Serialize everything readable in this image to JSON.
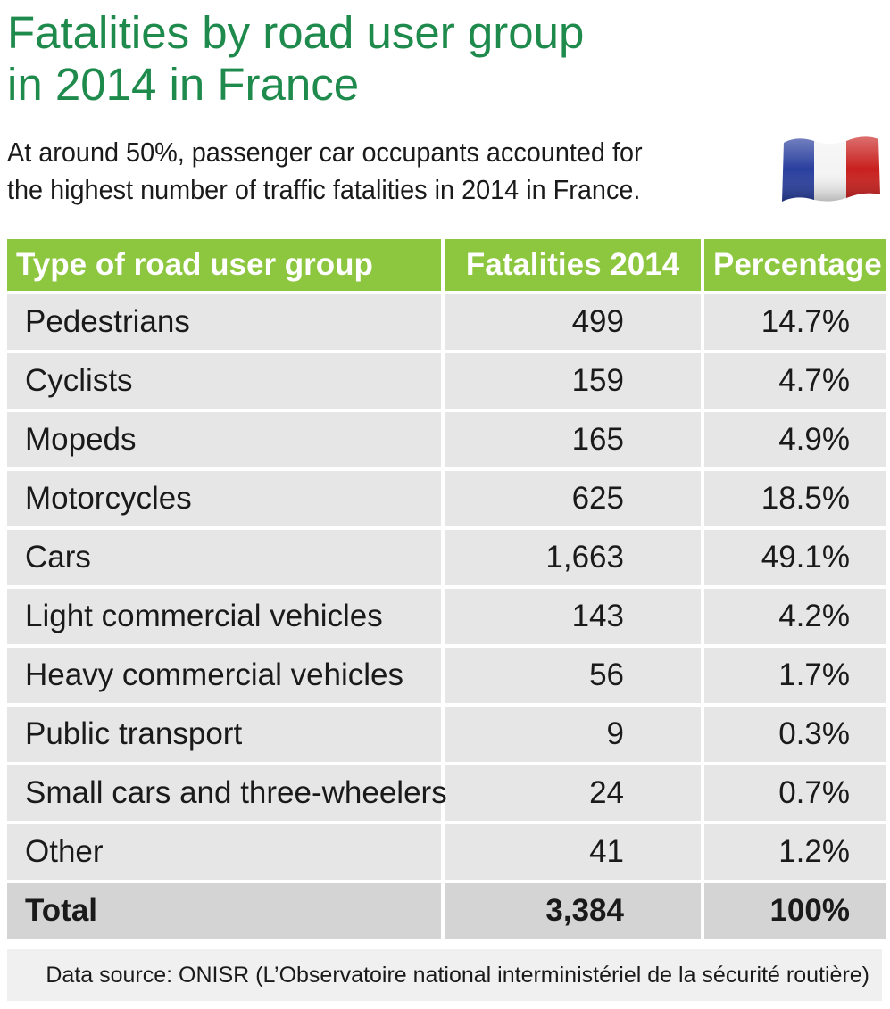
{
  "title_line1": "Fatalities by road user group",
  "title_line2": "in 2014 in France",
  "subtitle_line1": "At around 50%, passenger car occupants accounted for",
  "subtitle_line2": "the highest number of traffic fatalities in 2014 in France.",
  "flag_icon": "france-flag-icon",
  "colors": {
    "header_bg": "#8dc63f",
    "title": "#1e8a4c",
    "row_bg": "#e6e6e6",
    "total_bg": "#d4d4d4"
  },
  "chart_data": {
    "type": "table",
    "columns": [
      "Type of road user group",
      "Fatalities 2014",
      "Percentage"
    ],
    "rows": [
      {
        "label": "Pedestrians",
        "fatalities": "499",
        "percentage": "14.7%"
      },
      {
        "label": "Cyclists",
        "fatalities": "159",
        "percentage": "4.7%"
      },
      {
        "label": "Mopeds",
        "fatalities": "165",
        "percentage": "4.9%"
      },
      {
        "label": "Motorcycles",
        "fatalities": "625",
        "percentage": "18.5%"
      },
      {
        "label": "Cars",
        "fatalities": "1,663",
        "percentage": "49.1%"
      },
      {
        "label": "Light commercial vehicles",
        "fatalities": "143",
        "percentage": "4.2%"
      },
      {
        "label": "Heavy commercial vehicles",
        "fatalities": "56",
        "percentage": "1.7%"
      },
      {
        "label": "Public transport",
        "fatalities": "9",
        "percentage": "0.3%"
      },
      {
        "label": "Small cars and three-wheelers",
        "fatalities": "24",
        "percentage": "0.7%"
      },
      {
        "label": "Other",
        "fatalities": "41",
        "percentage": "1.2%"
      }
    ],
    "total": {
      "label": "Total",
      "fatalities": "3,384",
      "percentage": "100%"
    }
  },
  "source": "Data source: ONISR (L’Observatoire national interministériel de la sécurité routière)"
}
